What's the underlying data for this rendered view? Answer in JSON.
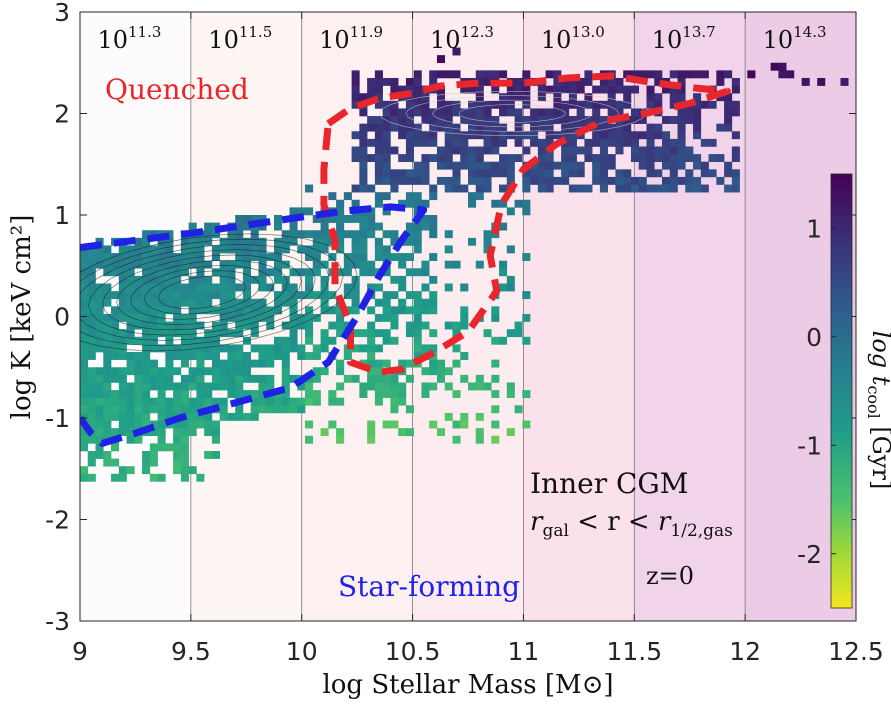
{
  "chart_data": {
    "type": "heatmap",
    "title": "",
    "xlabel": "log Stellar Mass [M⊙]",
    "ylabel_main": "log K",
    "ylabel_unit": " [keV cm²]",
    "xlim": [
      9,
      12.5
    ],
    "ylim": [
      -3,
      3
    ],
    "x_ticks": [
      "9",
      "9.5",
      "10",
      "10.5",
      "11",
      "11.5",
      "12",
      "12.5"
    ],
    "y_ticks": [
      "-3",
      "-2",
      "-1",
      "0",
      "1",
      "2",
      "3"
    ],
    "halo_mass_bands": [
      {
        "x0": 9.0,
        "x1": 9.5,
        "base": "10",
        "exp": "11.3",
        "color": "#fefbfd"
      },
      {
        "x0": 9.5,
        "x1": 10.0,
        "base": "10",
        "exp": "11.5",
        "color": "#fdf6f3"
      },
      {
        "x0": 10.0,
        "x1": 10.5,
        "base": "10",
        "exp": "11.9",
        "color": "#fcf0f0"
      },
      {
        "x0": 10.5,
        "x1": 11.0,
        "base": "10",
        "exp": "12.3",
        "color": "#fcecef"
      },
      {
        "x0": 11.0,
        "x1": 11.5,
        "base": "10",
        "exp": "13.0",
        "color": "#fbe1ec"
      },
      {
        "x0": 11.5,
        "x1": 12.0,
        "base": "10",
        "exp": "13.7",
        "color": "#f2d4ea"
      },
      {
        "x0": 12.0,
        "x1": 12.5,
        "base": "10",
        "exp": "14.3",
        "color": "#ebcbe6"
      }
    ],
    "colorbar": {
      "label_main": "log t",
      "label_sub": "cool",
      "label_unit": " [Gyr]",
      "range": [
        -2.5,
        1.5
      ],
      "ticks": [
        "1",
        "0",
        "-1",
        "-2"
      ],
      "tick_values": [
        1,
        0,
        -1,
        -2
      ],
      "colormap": "viridis (reversed)"
    },
    "annotations": {
      "quenched": "Quenched",
      "star_forming": "Star-forming",
      "region_title": "Inner CGM",
      "region_r": "r",
      "region_gal": "gal",
      "region_lt": " < r < ",
      "region_r2": "r",
      "region_half": "1/2,gas",
      "redshift": "z=0"
    },
    "quenched_contour": {
      "color": "#e8262c",
      "points": [
        [
          10.12,
          1.9
        ],
        [
          10.22,
          2.05
        ],
        [
          10.35,
          2.15
        ],
        [
          10.5,
          2.2
        ],
        [
          10.62,
          2.27
        ],
        [
          10.8,
          2.3
        ],
        [
          11.0,
          2.3
        ],
        [
          11.2,
          2.35
        ],
        [
          11.4,
          2.37
        ],
        [
          11.6,
          2.3
        ],
        [
          11.78,
          2.25
        ],
        [
          11.92,
          2.22
        ],
        [
          11.75,
          2.1
        ],
        [
          11.55,
          2.0
        ],
        [
          11.35,
          1.92
        ],
        [
          11.15,
          1.7
        ],
        [
          11.0,
          1.45
        ],
        [
          10.9,
          1.1
        ],
        [
          10.85,
          0.6
        ],
        [
          10.88,
          0.25
        ],
        [
          10.75,
          -0.15
        ],
        [
          10.6,
          -0.35
        ],
        [
          10.45,
          -0.52
        ],
        [
          10.35,
          -0.55
        ],
        [
          10.22,
          -0.45
        ],
        [
          10.22,
          -0.1
        ],
        [
          10.15,
          0.3
        ],
        [
          10.15,
          0.75
        ],
        [
          10.1,
          1.1
        ],
        [
          10.1,
          1.45
        ],
        [
          10.12,
          1.9
        ]
      ]
    },
    "starforming_contour": {
      "color": "#1f22e6",
      "points": [
        [
          9.0,
          0.68
        ],
        [
          9.25,
          0.75
        ],
        [
          9.5,
          0.82
        ],
        [
          9.75,
          0.9
        ],
        [
          10.0,
          0.98
        ],
        [
          10.2,
          1.04
        ],
        [
          10.4,
          1.08
        ],
        [
          10.55,
          1.05
        ],
        [
          10.45,
          0.75
        ],
        [
          10.35,
          0.4
        ],
        [
          10.25,
          0.0
        ],
        [
          10.12,
          -0.45
        ],
        [
          9.95,
          -0.7
        ],
        [
          9.7,
          -0.85
        ],
        [
          9.45,
          -1.0
        ],
        [
          9.25,
          -1.15
        ],
        [
          9.1,
          -1.25
        ],
        [
          9.05,
          -1.15
        ],
        [
          9.0,
          -1.0
        ]
      ]
    }
  }
}
